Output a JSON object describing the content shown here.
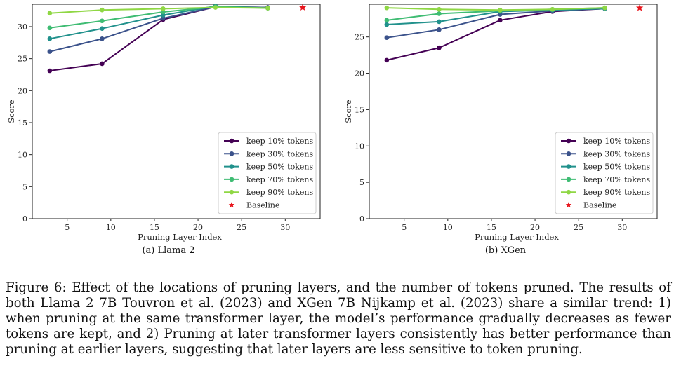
{
  "chart_data": [
    {
      "type": "line",
      "panel_label": "(a) Llama 2",
      "xlabel": "Pruning Layer Index",
      "ylabel": "Score",
      "xlim": [
        1,
        34
      ],
      "ylim": [
        0,
        33.5
      ],
      "xticks": [
        5,
        10,
        15,
        20,
        25,
        30
      ],
      "yticks": [
        0,
        5,
        10,
        15,
        20,
        25,
        30
      ],
      "x": [
        3,
        9,
        16,
        22,
        28
      ],
      "series": [
        {
          "name": "keep 10% tokens",
          "color": "#440154",
          "values": [
            23.1,
            24.2,
            31.1,
            33.1,
            33.0
          ]
        },
        {
          "name": "keep 30% tokens",
          "color": "#3b528b",
          "values": [
            26.1,
            28.1,
            31.3,
            33.1,
            33.0
          ]
        },
        {
          "name": "keep 50% tokens",
          "color": "#21918c",
          "values": [
            28.1,
            29.7,
            31.8,
            33.2,
            32.9
          ]
        },
        {
          "name": "keep 70% tokens",
          "color": "#3fbc73",
          "values": [
            29.8,
            30.9,
            32.3,
            33.1,
            32.9
          ]
        },
        {
          "name": "keep 90% tokens",
          "color": "#8fd744",
          "values": [
            32.1,
            32.6,
            32.8,
            33.0,
            32.9
          ]
        }
      ],
      "baseline": {
        "name": "Baseline",
        "x": 32,
        "y": 33.0,
        "color": "#e8141c"
      },
      "legend_position": "lower-right",
      "grid": false
    },
    {
      "type": "line",
      "panel_label": "(b) XGen",
      "xlabel": "Pruning Layer Index",
      "ylabel": "Score",
      "xlim": [
        1,
        34
      ],
      "ylim": [
        0,
        29.5
      ],
      "xticks": [
        5,
        10,
        15,
        20,
        25,
        30
      ],
      "yticks": [
        0,
        5,
        10,
        15,
        20,
        25
      ],
      "x": [
        3,
        9,
        16,
        22,
        28
      ],
      "series": [
        {
          "name": "keep 10% tokens",
          "color": "#440154",
          "values": [
            21.8,
            23.5,
            27.3,
            28.5,
            28.9
          ]
        },
        {
          "name": "keep 30% tokens",
          "color": "#3b528b",
          "values": [
            24.9,
            26.0,
            28.1,
            28.6,
            28.9
          ]
        },
        {
          "name": "keep 50% tokens",
          "color": "#21918c",
          "values": [
            26.7,
            27.1,
            28.5,
            28.7,
            28.9
          ]
        },
        {
          "name": "keep 70% tokens",
          "color": "#3fbc73",
          "values": [
            27.3,
            28.2,
            28.6,
            28.8,
            29.0
          ]
        },
        {
          "name": "keep 90% tokens",
          "color": "#8fd744",
          "values": [
            29.0,
            28.8,
            28.7,
            28.8,
            29.0
          ]
        }
      ],
      "baseline": {
        "name": "Baseline",
        "x": 32,
        "y": 29.0,
        "color": "#e8141c"
      },
      "legend_position": "lower-right",
      "grid": false
    }
  ],
  "caption": "Figure 6: Effect of the locations of pruning layers, and the number of tokens pruned. The results of both Llama 2 7B Touvron et al. (2023) and XGen 7B Nijkamp et al. (2023) share a similar trend: 1) when pruning at the same transformer layer, the model’s performance gradually decreases as fewer tokens are kept, and 2) Pruning at later transformer layers consistently has better performance than pruning at earlier layers, suggesting that later layers are less sensitive to token pruning."
}
